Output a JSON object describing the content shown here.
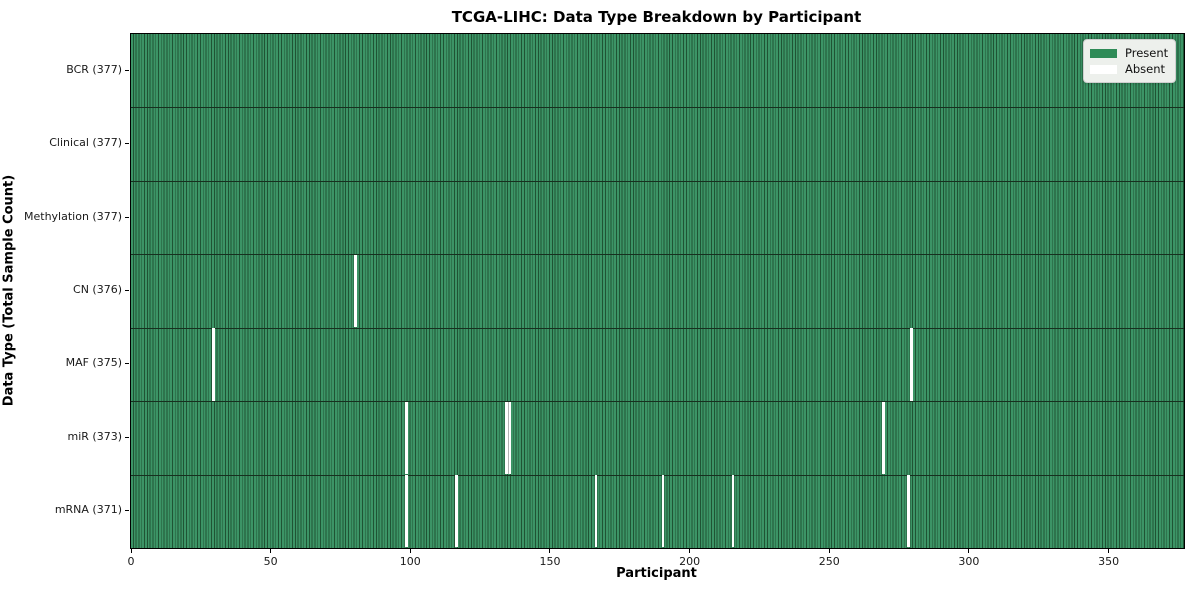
{
  "title": "TCGA-LIHC: Data Type Breakdown by Participant",
  "xlabel": "Participant",
  "ylabel": "Data Type (Total Sample Count)",
  "legend": {
    "present_label": "Present",
    "absent_label": "Absent"
  },
  "colors": {
    "present": "#2e8b57",
    "present_stripe_light": "#3c9466",
    "present_stripe_dark": "#1f5434",
    "absent": "#ffffff",
    "row_separator": "#17301f",
    "legend_bg": "#edf0ec"
  },
  "chart_data": {
    "type": "heatmap",
    "title": "TCGA-LIHC: Data Type Breakdown by Participant",
    "xlabel": "Participant",
    "ylabel": "Data Type (Total Sample Count)",
    "n_participants": 377,
    "xlim": [
      0,
      377
    ],
    "x_ticks": [
      0,
      50,
      100,
      150,
      200,
      250,
      300,
      350
    ],
    "grid": false,
    "legend_position": "upper right",
    "legend_entries": [
      {
        "label": "Present",
        "color": "#2e8b57"
      },
      {
        "label": "Absent",
        "color": "#ffffff"
      }
    ],
    "rows": [
      {
        "label": "BCR (377)",
        "data_type": "BCR",
        "total_samples": 377,
        "absent_participants": []
      },
      {
        "label": "Clinical (377)",
        "data_type": "Clinical",
        "total_samples": 377,
        "absent_participants": []
      },
      {
        "label": "Methylation (377)",
        "data_type": "Methylation",
        "total_samples": 377,
        "absent_participants": []
      },
      {
        "label": "CN (376)",
        "data_type": "CN",
        "total_samples": 376,
        "absent_participants": [
          80
        ]
      },
      {
        "label": "MAF (375)",
        "data_type": "MAF",
        "total_samples": 375,
        "absent_participants": [
          29,
          279
        ]
      },
      {
        "label": "miR (373)",
        "data_type": "miR",
        "total_samples": 373,
        "absent_participants": [
          98,
          134,
          135,
          269
        ]
      },
      {
        "label": "mRNA (371)",
        "data_type": "mRNA",
        "total_samples": 371,
        "absent_participants": [
          98,
          116,
          166,
          190,
          215,
          278
        ]
      }
    ]
  }
}
